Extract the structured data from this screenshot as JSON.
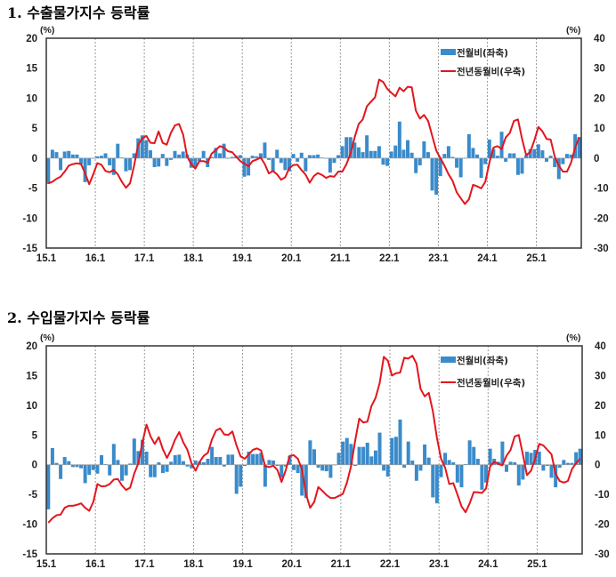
{
  "chart_data": [
    {
      "type": "bar+line",
      "title": "1. 수출물가지수 등락률",
      "left_unit": "(%)",
      "right_unit": "(%)",
      "ylim_left": [
        -15,
        20
      ],
      "yticks_left": [
        20,
        15,
        10,
        5,
        0,
        -5,
        -10,
        -15
      ],
      "ylim_right": [
        -30,
        40
      ],
      "yticks_right": [
        40,
        30,
        20,
        10,
        0,
        -10,
        -20,
        -30
      ],
      "xtick_labels": [
        "15.1",
        "16.1",
        "17.1",
        "18.1",
        "19.1",
        "20.1",
        "21.1",
        "22.1",
        "23.1",
        "24.1",
        "25.1"
      ],
      "x_range": [
        "15.1",
        "25.11"
      ],
      "grid": "vertical dashed at year ticks",
      "legend_position": "top-right",
      "series": [
        {
          "name": "전월비(좌축)",
          "kind": "bar",
          "axis": "left",
          "color": "#3a8bcb",
          "values": [
            -4.3,
            1.4,
            1.0,
            -2.0,
            1.1,
            1.2,
            0.6,
            0.6,
            -1.0,
            -4.0,
            -1.2,
            0.0,
            0.3,
            0.4,
            0.8,
            -1.2,
            -2.8,
            2.4,
            0.1,
            -2.2,
            -2.0,
            0.8,
            3.3,
            3.8,
            3.0,
            1.3,
            -1.5,
            -1.4,
            0.7,
            -1.3,
            -0.3,
            1.2,
            0.6,
            1.1,
            0.6,
            -1.6,
            -1.5,
            -0.5,
            1.2,
            -1.5,
            0.2,
            1.7,
            0.8,
            2.4,
            -0.1,
            0.2,
            0.4,
            0.5,
            -3.1,
            -2.9,
            0.4,
            0.3,
            0.8,
            2.6,
            -0.3,
            -2.3,
            1.4,
            -0.8,
            -2.0,
            -2.2,
            0.7,
            -0.6,
            0.9,
            -2.2,
            0.5,
            0.5,
            0.6,
            0.1,
            0.0,
            -2.4,
            -0.8,
            0.5,
            2.0,
            3.5,
            3.5,
            2.6,
            1.8,
            1.0,
            3.8,
            1.2,
            1.2,
            2.0,
            -1.1,
            -1.3,
            1.1,
            2.1,
            6.1,
            1.4,
            3.0,
            0.9,
            -2.5,
            -1.2,
            2.8,
            1.0,
            -5.4,
            -6.1,
            -3.0,
            0.7,
            2.0,
            0.2,
            -1.6,
            -3.2,
            0.0,
            4.0,
            1.7,
            0.6,
            -3.3,
            -1.0,
            3.1,
            1.5,
            0.4,
            4.4,
            -0.6,
            0.8,
            0.8,
            -2.8,
            -2.6,
            0.5,
            1.5,
            1.5,
            2.3,
            1.3,
            -0.6,
            0.4,
            -1.5,
            -3.5,
            -1.0,
            0.7,
            0.6,
            4.0,
            3.5
          ]
        },
        {
          "name": "전년동월비(우축)",
          "kind": "line",
          "axis": "right",
          "color": "#e3161d",
          "values": [
            -8.4,
            -7.9,
            -6.9,
            -6.2,
            -4.5,
            -2.5,
            -2.0,
            -1.7,
            -2.0,
            -5.0,
            -8.7,
            -5.4,
            -1.7,
            -2.2,
            -4.3,
            -4.7,
            -3.9,
            -5.4,
            -7.9,
            -9.9,
            -8.4,
            -2.5,
            4.5,
            6.6,
            7.4,
            5.1,
            5.0,
            8.9,
            5.1,
            4.5,
            8.4,
            10.9,
            11.4,
            7.9,
            0.5,
            -2.0,
            -3.5,
            -1.0,
            -1.0,
            -1.5,
            1.5,
            2.7,
            4.0,
            3.5,
            2.3,
            2.0,
            0.5,
            -1.0,
            -1.8,
            -2.7,
            -1.0,
            -0.5,
            0.2,
            -2.0,
            -5.1,
            -4.3,
            -5.4,
            -7.2,
            -6.4,
            -3.3,
            -2.3,
            -2.2,
            -4.0,
            -5.5,
            -8.2,
            -6.0,
            -5.0,
            -5.6,
            -6.6,
            -6.0,
            -6.2,
            -4.5,
            -4.5,
            -2.0,
            1.5,
            6.9,
            11.4,
            12.9,
            17.3,
            18.8,
            20.3,
            26.2,
            25.4,
            23.1,
            21.8,
            20.6,
            23.5,
            22.3,
            23.8,
            23.6,
            15.8,
            13.2,
            14.4,
            12.4,
            7.4,
            2.5,
            0.0,
            -2.5,
            -5.4,
            -7.6,
            -11.4,
            -13.4,
            -15.3,
            -13.7,
            -8.9,
            -9.4,
            -10.1,
            -7.9,
            -1.5,
            3.5,
            4.0,
            3.0,
            6.9,
            8.4,
            12.4,
            12.9,
            6.4,
            1.0,
            2.0,
            5.9,
            10.4,
            8.9,
            6.4,
            6.2,
            0.5,
            -2.5,
            -4.5,
            -4.5,
            -1.5,
            3.5,
            7.0
          ]
        }
      ]
    },
    {
      "type": "bar+line",
      "title": "2. 수입물가지수 등락률",
      "left_unit": "(%)",
      "right_unit": "(%)",
      "ylim_left": [
        -15,
        20
      ],
      "yticks_left": [
        20,
        15,
        10,
        5,
        0,
        -5,
        -10,
        -15
      ],
      "ylim_right": [
        -30,
        40
      ],
      "yticks_right": [
        40,
        30,
        20,
        10,
        0,
        -10,
        -20,
        -30
      ],
      "xtick_labels": [
        "15.1",
        "16.1",
        "17.1",
        "18.1",
        "19.1",
        "20.1",
        "21.1",
        "22.1",
        "23.1",
        "24.1",
        "25.1"
      ],
      "x_range": [
        "15.1",
        "25.11"
      ],
      "grid": "vertical dashed at year ticks",
      "legend_position": "top-right",
      "series": [
        {
          "name": "전월비(좌축)",
          "kind": "bar",
          "axis": "left",
          "color": "#3a8bcb",
          "values": [
            -7.5,
            2.8,
            0.3,
            -2.4,
            1.3,
            0.6,
            -0.4,
            -0.4,
            -0.6,
            -3.1,
            -1.7,
            -0.9,
            -1.5,
            1.6,
            0.1,
            -1.8,
            3.5,
            0.8,
            -2.7,
            -1.8,
            0.2,
            4.4,
            2.3,
            4.2,
            2.2,
            -2.1,
            -2.1,
            0.4,
            -1.4,
            -1.2,
            0.5,
            1.6,
            1.7,
            0.6,
            -0.3,
            -0.6,
            0.7,
            0.5,
            0.4,
            1.0,
            3.0,
            1.3,
            1.3,
            -0.3,
            1.7,
            1.7,
            -4.9,
            -3.7,
            -0.2,
            2.2,
            1.8,
            1.8,
            2.0,
            -3.7,
            0.8,
            0.7,
            -0.2,
            -2.2,
            -0.3,
            1.5,
            -0.9,
            -1.4,
            -5.2,
            -5.6,
            4.1,
            2.6,
            -0.5,
            -1.0,
            -1.1,
            -2.2,
            0.0,
            2.0,
            3.9,
            4.5,
            3.5,
            -0.2,
            3.0,
            3.0,
            3.7,
            1.4,
            2.4,
            5.4,
            -1.0,
            -2.0,
            4.5,
            4.7,
            7.6,
            -0.5,
            3.9,
            0.7,
            -2.7,
            -1.0,
            3.4,
            1.2,
            -5.5,
            -6.5,
            -2.1,
            2.0,
            0.8,
            0.4,
            -3.0,
            -3.8,
            0.1,
            4.1,
            3.0,
            1.0,
            -4.2,
            -3.0,
            2.7,
            1.0,
            0.5,
            3.9,
            -1.2,
            0.5,
            0.4,
            -3.5,
            -2.5,
            2.2,
            2.0,
            2.5,
            2.2,
            -1.0,
            -0.2,
            -2.2,
            -3.8,
            -0.5,
            0.8,
            0.3,
            0.3,
            2.1,
            2.7
          ]
        },
        {
          "name": "전년동월비(우축)",
          "kind": "line",
          "axis": "right",
          "color": "#e3161d",
          "values": [
            -19.5,
            -18.0,
            -17.0,
            -16.8,
            -14.5,
            -13.8,
            -13.8,
            -13.5,
            -13.0,
            -14.5,
            -15.5,
            -12.5,
            -6.5,
            -7.3,
            -7.2,
            -6.5,
            -5.0,
            -4.8,
            -7.0,
            -8.5,
            -7.7,
            -3.0,
            0.5,
            7.5,
            13.5,
            9.5,
            7.0,
            9.3,
            5.2,
            2.3,
            5.0,
            8.5,
            11.0,
            7.5,
            5.0,
            0.5,
            -2.0,
            1.0,
            3.0,
            4.0,
            8.5,
            11.5,
            12.2,
            10.2,
            10.0,
            11.2,
            6.5,
            2.8,
            2.0,
            3.5,
            5.0,
            5.5,
            4.8,
            -0.5,
            -0.8,
            -0.3,
            -1.8,
            -5.8,
            -2.0,
            3.0,
            3.2,
            2.0,
            -1.5,
            -10.0,
            -14.5,
            -12.5,
            -7.5,
            -8.8,
            -10.2,
            -11.2,
            -11.2,
            -10.5,
            -9.8,
            -6.0,
            -0.5,
            8.0,
            15.5,
            14.2,
            14.5,
            19.8,
            22.5,
            27.5,
            36.3,
            35.0,
            30.0,
            30.8,
            31.0,
            36.0,
            35.7,
            36.7,
            34.0,
            25.5,
            23.0,
            24.2,
            18.0,
            9.0,
            2.0,
            -1.0,
            -6.5,
            -6.2,
            -10.0,
            -14.0,
            -16.0,
            -13.0,
            -9.2,
            -9.3,
            -9.5,
            -8.0,
            -0.5,
            1.0,
            0.3,
            -0.2,
            3.0,
            5.0,
            9.5,
            10.0,
            3.5,
            -3.5,
            -2.0,
            2.0,
            7.0,
            6.5,
            5.0,
            3.5,
            -3.0,
            -5.5,
            -6.0,
            -5.5,
            -1.5,
            0.5,
            2.0
          ]
        }
      ]
    }
  ]
}
